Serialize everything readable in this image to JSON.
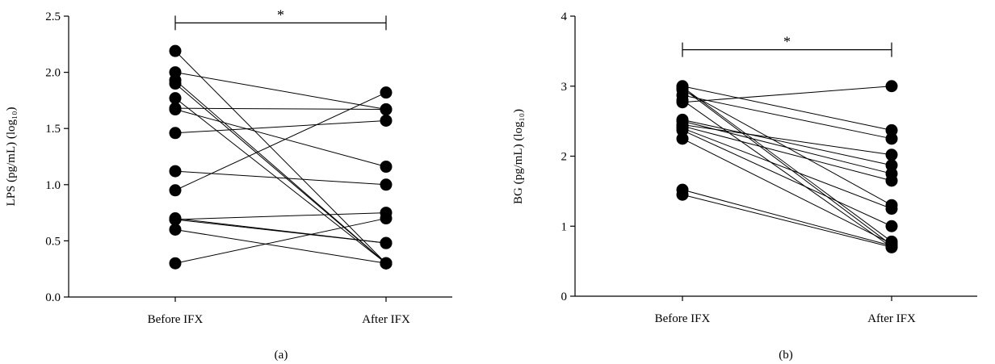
{
  "panels": [
    {
      "label": "(a)"
    },
    {
      "label": "(b)"
    }
  ],
  "chart_data": [
    {
      "type": "line",
      "panel_label": "(a)",
      "ylabel": "LPS (pg/mL) (log₁₀)",
      "categories": [
        "Before IFX",
        "After IFX"
      ],
      "ylim": [
        0.0,
        2.5
      ],
      "yticks": [
        0.0,
        0.5,
        1.0,
        1.5,
        2.0,
        2.5
      ],
      "ytick_labels": [
        "0.0",
        "0.5",
        "1.0",
        "1.5",
        "2.0",
        "2.5"
      ],
      "significance": {
        "from": "Before IFX",
        "to": "After IFX",
        "y": 2.44,
        "text": "*"
      },
      "pairs": [
        {
          "before": 2.19,
          "after": 0.3
        },
        {
          "before": 2.0,
          "after": 1.67
        },
        {
          "before": 1.93,
          "after": 0.3
        },
        {
          "before": 1.9,
          "after": 0.3
        },
        {
          "before": 1.77,
          "after": 0.3
        },
        {
          "before": 1.68,
          "after": 1.67
        },
        {
          "before": 1.67,
          "after": 1.16
        },
        {
          "before": 1.46,
          "after": 1.57
        },
        {
          "before": 1.12,
          "after": 1.0
        },
        {
          "before": 0.95,
          "after": 1.82
        },
        {
          "before": 0.7,
          "after": 0.48
        },
        {
          "before": 0.69,
          "after": 0.48
        },
        {
          "before": 0.69,
          "after": 0.75
        },
        {
          "before": 0.6,
          "after": 0.3
        },
        {
          "before": 0.3,
          "after": 0.7
        }
      ]
    },
    {
      "type": "line",
      "panel_label": "(b)",
      "ylabel": "BG (pg/mL) (log₁₀)",
      "categories": [
        "Before IFX",
        "After IFX"
      ],
      "ylim": [
        0,
        4
      ],
      "yticks": [
        0,
        1,
        2,
        3,
        4
      ],
      "ytick_labels": [
        "0",
        "1",
        "2",
        "3",
        "4"
      ],
      "significance": {
        "from": "Before IFX",
        "to": "After IFX",
        "y": 3.52,
        "text": "*"
      },
      "pairs": [
        {
          "before": 3.0,
          "after": 2.37
        },
        {
          "before": 2.99,
          "after": 0.78
        },
        {
          "before": 2.97,
          "after": 0.73
        },
        {
          "before": 2.95,
          "after": 1.3
        },
        {
          "before": 2.87,
          "after": 2.25
        },
        {
          "before": 2.8,
          "after": 0.7
        },
        {
          "before": 2.77,
          "after": 3.0
        },
        {
          "before": 2.52,
          "after": 1.87
        },
        {
          "before": 2.5,
          "after": 1.75
        },
        {
          "before": 2.45,
          "after": 2.02
        },
        {
          "before": 2.43,
          "after": 1.65
        },
        {
          "before": 2.4,
          "after": 1.25
        },
        {
          "before": 2.37,
          "after": 1.0
        },
        {
          "before": 2.25,
          "after": 0.75
        },
        {
          "before": 1.52,
          "after": 0.72
        },
        {
          "before": 1.45,
          "after": 0.7
        }
      ]
    }
  ]
}
